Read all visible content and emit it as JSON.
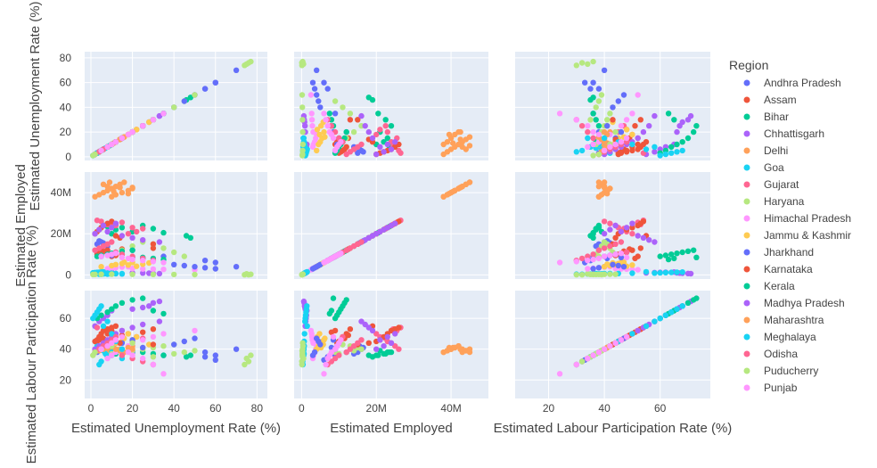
{
  "chart_data": {
    "type": "scatter",
    "subtype": "scatter-matrix",
    "dimensions": [
      {
        "key": "unemp",
        "label": "Estimated Unemployment Rate (%)",
        "range": [
          -3,
          85
        ],
        "ticks": [
          {
            "v": 0,
            "t": "0"
          },
          {
            "v": 20,
            "t": "20"
          },
          {
            "v": 40,
            "t": "40"
          },
          {
            "v": 60,
            "t": "60"
          },
          {
            "v": 80,
            "t": "80"
          }
        ]
      },
      {
        "key": "emp",
        "label": "Estimated Employed",
        "range": [
          -2000000,
          50000000
        ],
        "ticks": [
          {
            "v": 0,
            "t": "0"
          },
          {
            "v": 20000000,
            "t": "20M"
          },
          {
            "v": 40000000,
            "t": "40M"
          }
        ]
      },
      {
        "key": "lpr",
        "label": "Estimated Labour Participation Rate (%)",
        "range": [
          8,
          78
        ],
        "ticks": [
          {
            "v": 20,
            "t": "20"
          },
          {
            "v": 40,
            "t": "40"
          },
          {
            "v": 60,
            "t": "60"
          }
        ]
      }
    ],
    "legend": {
      "title": "Region",
      "position": "right"
    },
    "grid": true,
    "series": [
      {
        "name": "Andhra Pradesh",
        "color": "#636efa",
        "unemp": [
          3,
          5,
          6,
          8,
          4,
          20,
          35,
          55,
          60,
          70
        ],
        "emp": [
          15000000,
          16000000,
          15500000,
          14000000,
          16500000,
          12000000,
          9000000,
          7000000,
          6000000,
          4000000
        ],
        "lpr": [
          38,
          40,
          42,
          37,
          41,
          38,
          36,
          35,
          33,
          40
        ]
      },
      {
        "name": "Assam",
        "color": "#ef553b",
        "unemp": [
          3,
          5,
          8,
          10,
          4,
          6,
          15,
          25,
          30,
          12
        ],
        "emp": [
          10000000,
          11000000,
          12000000,
          9000000,
          10500000,
          11500000,
          12500000,
          8000000,
          13000000,
          9500000
        ],
        "lpr": [
          45,
          48,
          50,
          52,
          46,
          47,
          49,
          51,
          53,
          44
        ]
      },
      {
        "name": "Bihar",
        "color": "#00cc96",
        "unemp": [
          10,
          12,
          15,
          20,
          25,
          30,
          35,
          46,
          48,
          8
        ],
        "emp": [
          20000000,
          22000000,
          23000000,
          21000000,
          24000000,
          22500000,
          20500000,
          19000000,
          18000000,
          23500000
        ],
        "lpr": [
          36,
          37,
          38,
          39,
          38,
          37,
          36,
          35,
          36,
          38
        ]
      },
      {
        "name": "Chhattisgarh",
        "color": "#ab63fa",
        "unemp": [
          2,
          4,
          6,
          8,
          10,
          20,
          25,
          28,
          30,
          33
        ],
        "emp": [
          1000000,
          1100000,
          1200000,
          1300000,
          1400000,
          1000000,
          900000,
          800000,
          700000,
          600000
        ],
        "lpr": [
          55,
          58,
          60,
          62,
          65,
          66,
          67,
          68,
          70,
          71
        ]
      },
      {
        "name": "Delhi",
        "color": "#ffa15a",
        "unemp": [
          10,
          12,
          15,
          18,
          20,
          8,
          6,
          9,
          11,
          14
        ],
        "emp": [
          38000000,
          39000000,
          40000000,
          41000000,
          42000000,
          43000000,
          44000000,
          45000000,
          40500000,
          42500000
        ],
        "lpr": [
          38,
          39,
          40,
          41,
          42,
          38,
          39,
          40,
          41,
          40
        ]
      },
      {
        "name": "Goa",
        "color": "#19d3f3",
        "unemp": [
          5,
          8,
          10,
          12,
          3,
          4,
          15,
          9,
          7,
          6
        ],
        "emp": [
          300000,
          400000,
          500000,
          600000,
          700000,
          350000,
          450000,
          550000,
          650000,
          500000
        ],
        "lpr": [
          32,
          35,
          38,
          40,
          42,
          30,
          34,
          36,
          37,
          39
        ]
      },
      {
        "name": "Gujarat",
        "color": "#ff6692",
        "unemp": [
          5,
          10,
          12,
          20,
          25,
          22,
          18,
          15,
          8,
          3
        ],
        "emp": [
          26000000,
          25000000,
          24000000,
          23000000,
          22500000,
          21000000,
          20000000,
          25500000,
          24500000,
          26500000
        ],
        "lpr": [
          40,
          42,
          44,
          45,
          47,
          48,
          50,
          52,
          53,
          54
        ]
      },
      {
        "name": "Haryana",
        "color": "#b6e880",
        "unemp": [
          10,
          15,
          20,
          25,
          30,
          35,
          40,
          45,
          75,
          77
        ],
        "emp": [
          10000000,
          12000000,
          14000000,
          16000000,
          15000000,
          13000000,
          11000000,
          9000000,
          500000,
          300000
        ],
        "lpr": [
          37,
          38,
          39,
          40,
          41,
          42,
          43,
          38,
          34,
          36
        ]
      },
      {
        "name": "Himachal Pradesh",
        "color": "#ff97ff",
        "unemp": [
          8,
          10,
          12,
          15,
          18,
          20,
          25,
          30,
          35,
          50
        ],
        "emp": [
          3000000,
          3200000,
          3500000,
          3800000,
          4000000,
          3100000,
          2900000,
          2800000,
          2700000,
          2500000
        ],
        "lpr": [
          34,
          36,
          38,
          40,
          42,
          44,
          46,
          48,
          50,
          52
        ]
      },
      {
        "name": "Jammu & Kashmir",
        "color": "#fecb52",
        "unemp": [
          5,
          10,
          12,
          15,
          20,
          22,
          18,
          25,
          28,
          16
        ],
        "emp": [
          4000000,
          4500000,
          5000000,
          5500000,
          6000000,
          4200000,
          4800000,
          5200000,
          5800000,
          6200000
        ],
        "lpr": [
          40,
          42,
          44,
          45,
          46,
          48,
          50,
          41,
          43,
          47
        ]
      },
      {
        "name": "Jharkhand",
        "color": "#636efa",
        "unemp": [
          5,
          10,
          15,
          20,
          25,
          40,
          45,
          50,
          55,
          60
        ],
        "emp": [
          9000000,
          9500000,
          10000000,
          8500000,
          8000000,
          5000000,
          4500000,
          4000000,
          3500000,
          3000000
        ],
        "lpr": [
          40,
          42,
          44,
          46,
          41,
          43,
          45,
          47,
          38,
          36
        ]
      },
      {
        "name": "Karnataka",
        "color": "#ef553b",
        "unemp": [
          2,
          3,
          4,
          5,
          6,
          8,
          10,
          12,
          14,
          30
        ],
        "emp": [
          20000000,
          21000000,
          22000000,
          23000000,
          24000000,
          25000000,
          26000000,
          19000000,
          18000000,
          15000000
        ],
        "lpr": [
          45,
          46,
          48,
          50,
          52,
          53,
          54,
          55,
          44,
          43
        ]
      },
      {
        "name": "Kerala",
        "color": "#00cc96",
        "unemp": [
          3,
          5,
          8,
          10,
          12,
          15,
          20,
          25,
          30,
          35
        ],
        "emp": [
          9000000,
          9500000,
          10000000,
          10500000,
          11000000,
          11500000,
          12000000,
          8500000,
          8000000,
          7500000
        ],
        "lpr": [
          60,
          62,
          64,
          66,
          68,
          70,
          72,
          73,
          65,
          63
        ]
      },
      {
        "name": "Madhya Pradesh",
        "color": "#ab63fa",
        "unemp": [
          2,
          4,
          6,
          8,
          10,
          12,
          15,
          20,
          25,
          33
        ],
        "emp": [
          20000000,
          22000000,
          24000000,
          21000000,
          23000000,
          25000000,
          19000000,
          18000000,
          17000000,
          16000000
        ],
        "lpr": [
          40,
          42,
          44,
          46,
          48,
          50,
          52,
          54,
          56,
          58
        ]
      },
      {
        "name": "Maharashtra",
        "color": "#ffa15a",
        "unemp": [
          2,
          4,
          6,
          8,
          10,
          12,
          14,
          16,
          18,
          20
        ],
        "emp": [
          38000000,
          39000000,
          40000000,
          41000000,
          42000000,
          43000000,
          44000000,
          45000000,
          39500000,
          42500000
        ],
        "lpr": [
          38,
          39,
          40,
          41,
          42,
          40,
          39,
          38,
          41,
          40
        ]
      },
      {
        "name": "Meghalaya",
        "color": "#19d3f3",
        "unemp": [
          1,
          2,
          3,
          4,
          5,
          6,
          8,
          10,
          12,
          15
        ],
        "emp": [
          1000000,
          1100000,
          1200000,
          1300000,
          1400000,
          1500000,
          900000,
          800000,
          700000,
          600000
        ],
        "lpr": [
          60,
          62,
          64,
          66,
          68,
          55,
          58,
          50,
          45,
          40
        ]
      },
      {
        "name": "Odisha",
        "color": "#ff6692",
        "unemp": [
          2,
          4,
          6,
          8,
          10,
          12,
          15,
          20,
          25,
          30
        ],
        "emp": [
          12000000,
          13000000,
          14000000,
          15000000,
          16000000,
          11000000,
          10000000,
          9000000,
          8000000,
          7000000
        ],
        "lpr": [
          38,
          40,
          42,
          44,
          46,
          48,
          36,
          34,
          32,
          30
        ]
      },
      {
        "name": "Puducherry",
        "color": "#b6e880",
        "unemp": [
          1,
          2,
          5,
          10,
          20,
          30,
          40,
          50,
          74,
          76
        ],
        "emp": [
          200000,
          250000,
          300000,
          350000,
          300000,
          250000,
          200000,
          150000,
          100000,
          80000
        ],
        "lpr": [
          36,
          38,
          40,
          42,
          44,
          35,
          37,
          39,
          30,
          32
        ]
      },
      {
        "name": "Punjab",
        "color": "#ff97ff",
        "unemp": [
          5,
          8,
          10,
          12,
          15,
          18,
          20,
          25,
          30,
          35
        ],
        "emp": [
          9000000,
          9500000,
          10000000,
          10500000,
          8500000,
          8000000,
          7500000,
          7000000,
          6500000,
          6000000
        ],
        "lpr": [
          40,
          42,
          44,
          46,
          48,
          38,
          36,
          34,
          30,
          24
        ]
      }
    ]
  }
}
